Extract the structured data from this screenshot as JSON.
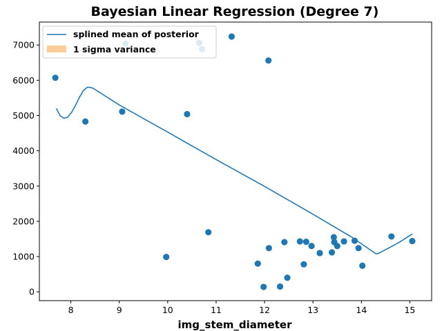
{
  "chart_data": {
    "type": "scatter",
    "title": "Bayesian Linear Regression (Degree 7)",
    "xlabel": "img_stem_diameter",
    "ylabel": "",
    "xlim": [
      7.35,
      15.45
    ],
    "ylim": [
      -250,
      7650
    ],
    "xticks": [
      8,
      9,
      10,
      11,
      12,
      13,
      14,
      15
    ],
    "yticks": [
      0,
      1000,
      2000,
      3000,
      4000,
      5000,
      6000,
      7000
    ],
    "grid": false,
    "legend_position": "top-left",
    "colors": {
      "scatter": "#1f77b4",
      "line": "#1f77b4",
      "band": "#ffbb78"
    },
    "points": [
      {
        "x": 7.68,
        "y": 6070
      },
      {
        "x": 8.3,
        "y": 4830
      },
      {
        "x": 9.06,
        "y": 5110
      },
      {
        "x": 9.13,
        "y": 7040
      },
      {
        "x": 9.97,
        "y": 990
      },
      {
        "x": 10.4,
        "y": 5040
      },
      {
        "x": 10.65,
        "y": 7060
      },
      {
        "x": 10.71,
        "y": 6880
      },
      {
        "x": 10.84,
        "y": 1690
      },
      {
        "x": 11.32,
        "y": 7240
      },
      {
        "x": 11.86,
        "y": 800
      },
      {
        "x": 11.98,
        "y": 140
      },
      {
        "x": 12.08,
        "y": 6560
      },
      {
        "x": 12.09,
        "y": 1240
      },
      {
        "x": 12.32,
        "y": 150
      },
      {
        "x": 12.41,
        "y": 1410
      },
      {
        "x": 12.47,
        "y": 400
      },
      {
        "x": 12.73,
        "y": 1430
      },
      {
        "x": 12.81,
        "y": 780
      },
      {
        "x": 12.86,
        "y": 1420
      },
      {
        "x": 12.97,
        "y": 1300
      },
      {
        "x": 13.14,
        "y": 1100
      },
      {
        "x": 13.39,
        "y": 1120
      },
      {
        "x": 13.43,
        "y": 1550
      },
      {
        "x": 13.44,
        "y": 1410
      },
      {
        "x": 13.5,
        "y": 1300
      },
      {
        "x": 13.64,
        "y": 1430
      },
      {
        "x": 13.86,
        "y": 1450
      },
      {
        "x": 13.94,
        "y": 1240
      },
      {
        "x": 14.02,
        "y": 740
      },
      {
        "x": 14.62,
        "y": 1570
      },
      {
        "x": 15.05,
        "y": 1440
      }
    ],
    "series": [
      {
        "name": "splined mean of posterior",
        "type": "line",
        "x": [
          7.7,
          7.78,
          7.86,
          7.94,
          8.02,
          8.1,
          8.18,
          8.26,
          8.34,
          8.38,
          8.45,
          9.0,
          10.0,
          11.0,
          12.0,
          13.0,
          13.8,
          14.3,
          14.35,
          14.6,
          14.8,
          15.05
        ],
        "y": [
          5200,
          4990,
          4920,
          4960,
          5100,
          5300,
          5520,
          5710,
          5800,
          5800,
          5780,
          5300,
          4530,
          3750,
          2990,
          2200,
          1550,
          1080,
          1090,
          1270,
          1420,
          1640
        ]
      },
      {
        "name": "1 sigma variance",
        "type": "band",
        "x": [],
        "lower": [],
        "upper": []
      }
    ]
  }
}
